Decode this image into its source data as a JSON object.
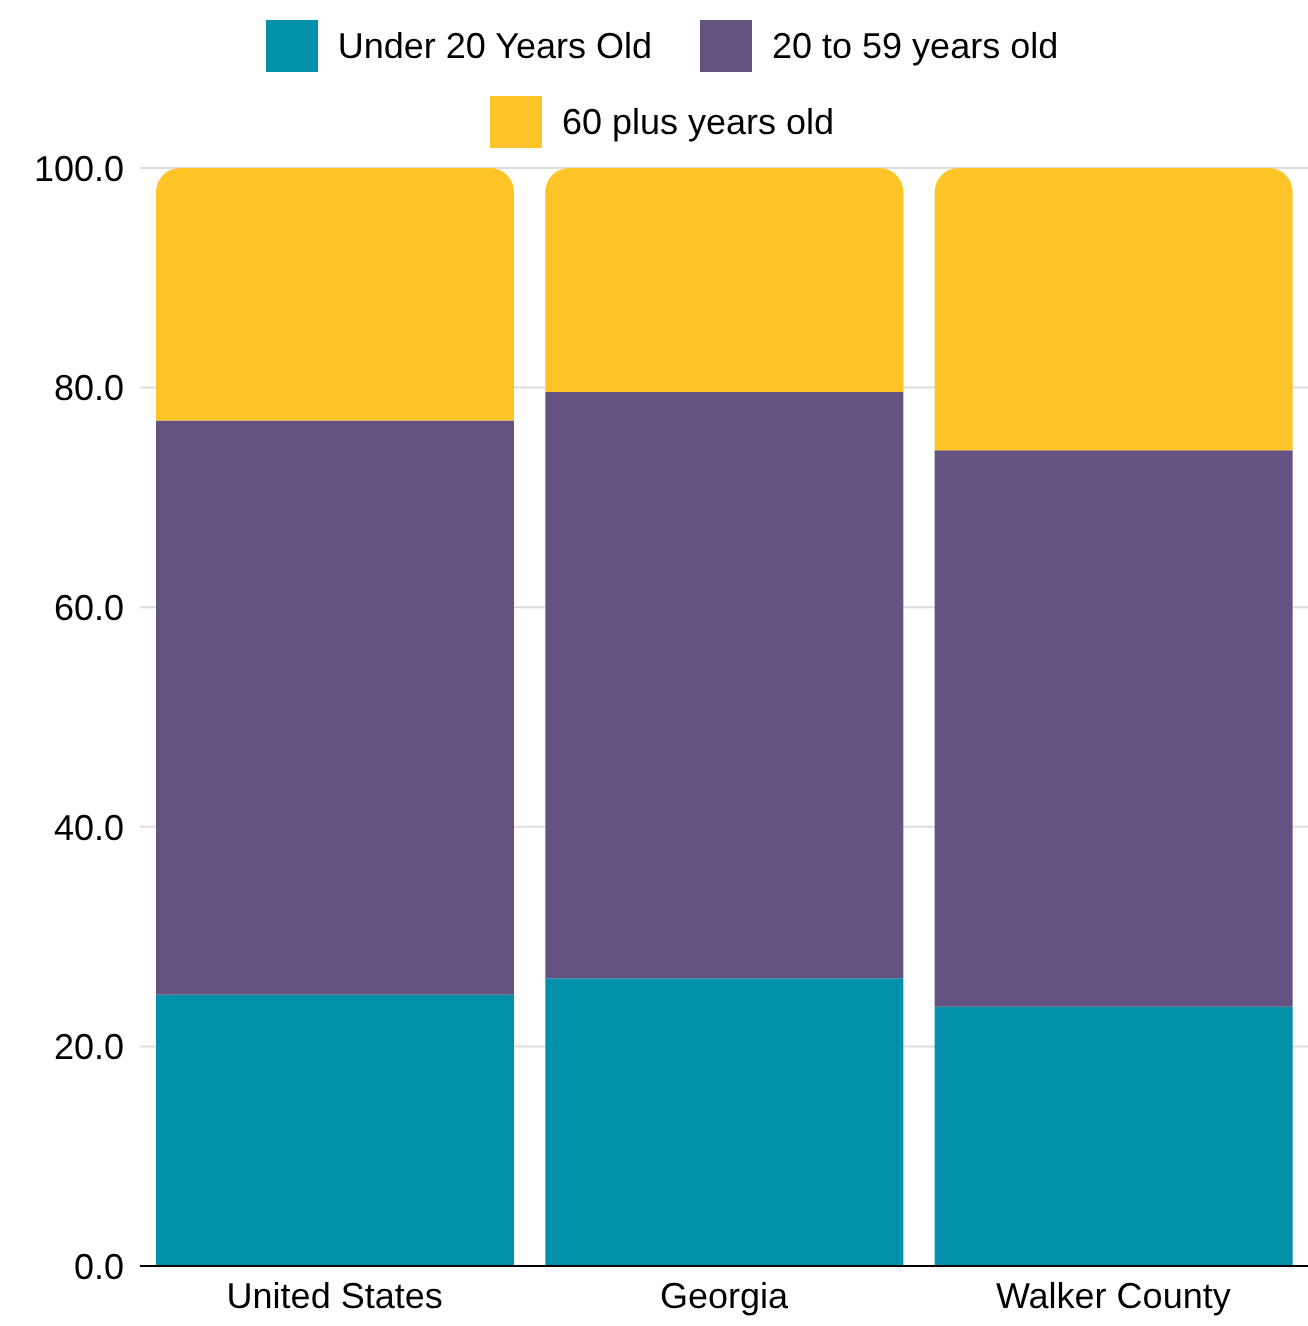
{
  "chart_data": {
    "type": "bar",
    "stacked": true,
    "categories": [
      "United States",
      "Georgia",
      "Walker County"
    ],
    "series": [
      {
        "name": "Under 20 Years Old",
        "color": "#0090aa",
        "values": [
          24.7,
          26.2,
          23.6
        ]
      },
      {
        "name": "20 to 59 years old",
        "color": "#645381",
        "values": [
          52.3,
          53.4,
          50.7
        ]
      },
      {
        "name": "60 plus years old",
        "color": "#fec428",
        "values": [
          23.0,
          20.4,
          25.7
        ]
      }
    ],
    "ylim": [
      0,
      100
    ],
    "yticks": [
      {
        "value": 0,
        "label": "0.0"
      },
      {
        "value": 20,
        "label": "20.0"
      },
      {
        "value": 40,
        "label": "40.0"
      },
      {
        "value": 60,
        "label": "60.0"
      },
      {
        "value": 80,
        "label": "80.0"
      },
      {
        "value": 100,
        "label": "100.0"
      }
    ],
    "grid": "y",
    "legend": "top"
  }
}
